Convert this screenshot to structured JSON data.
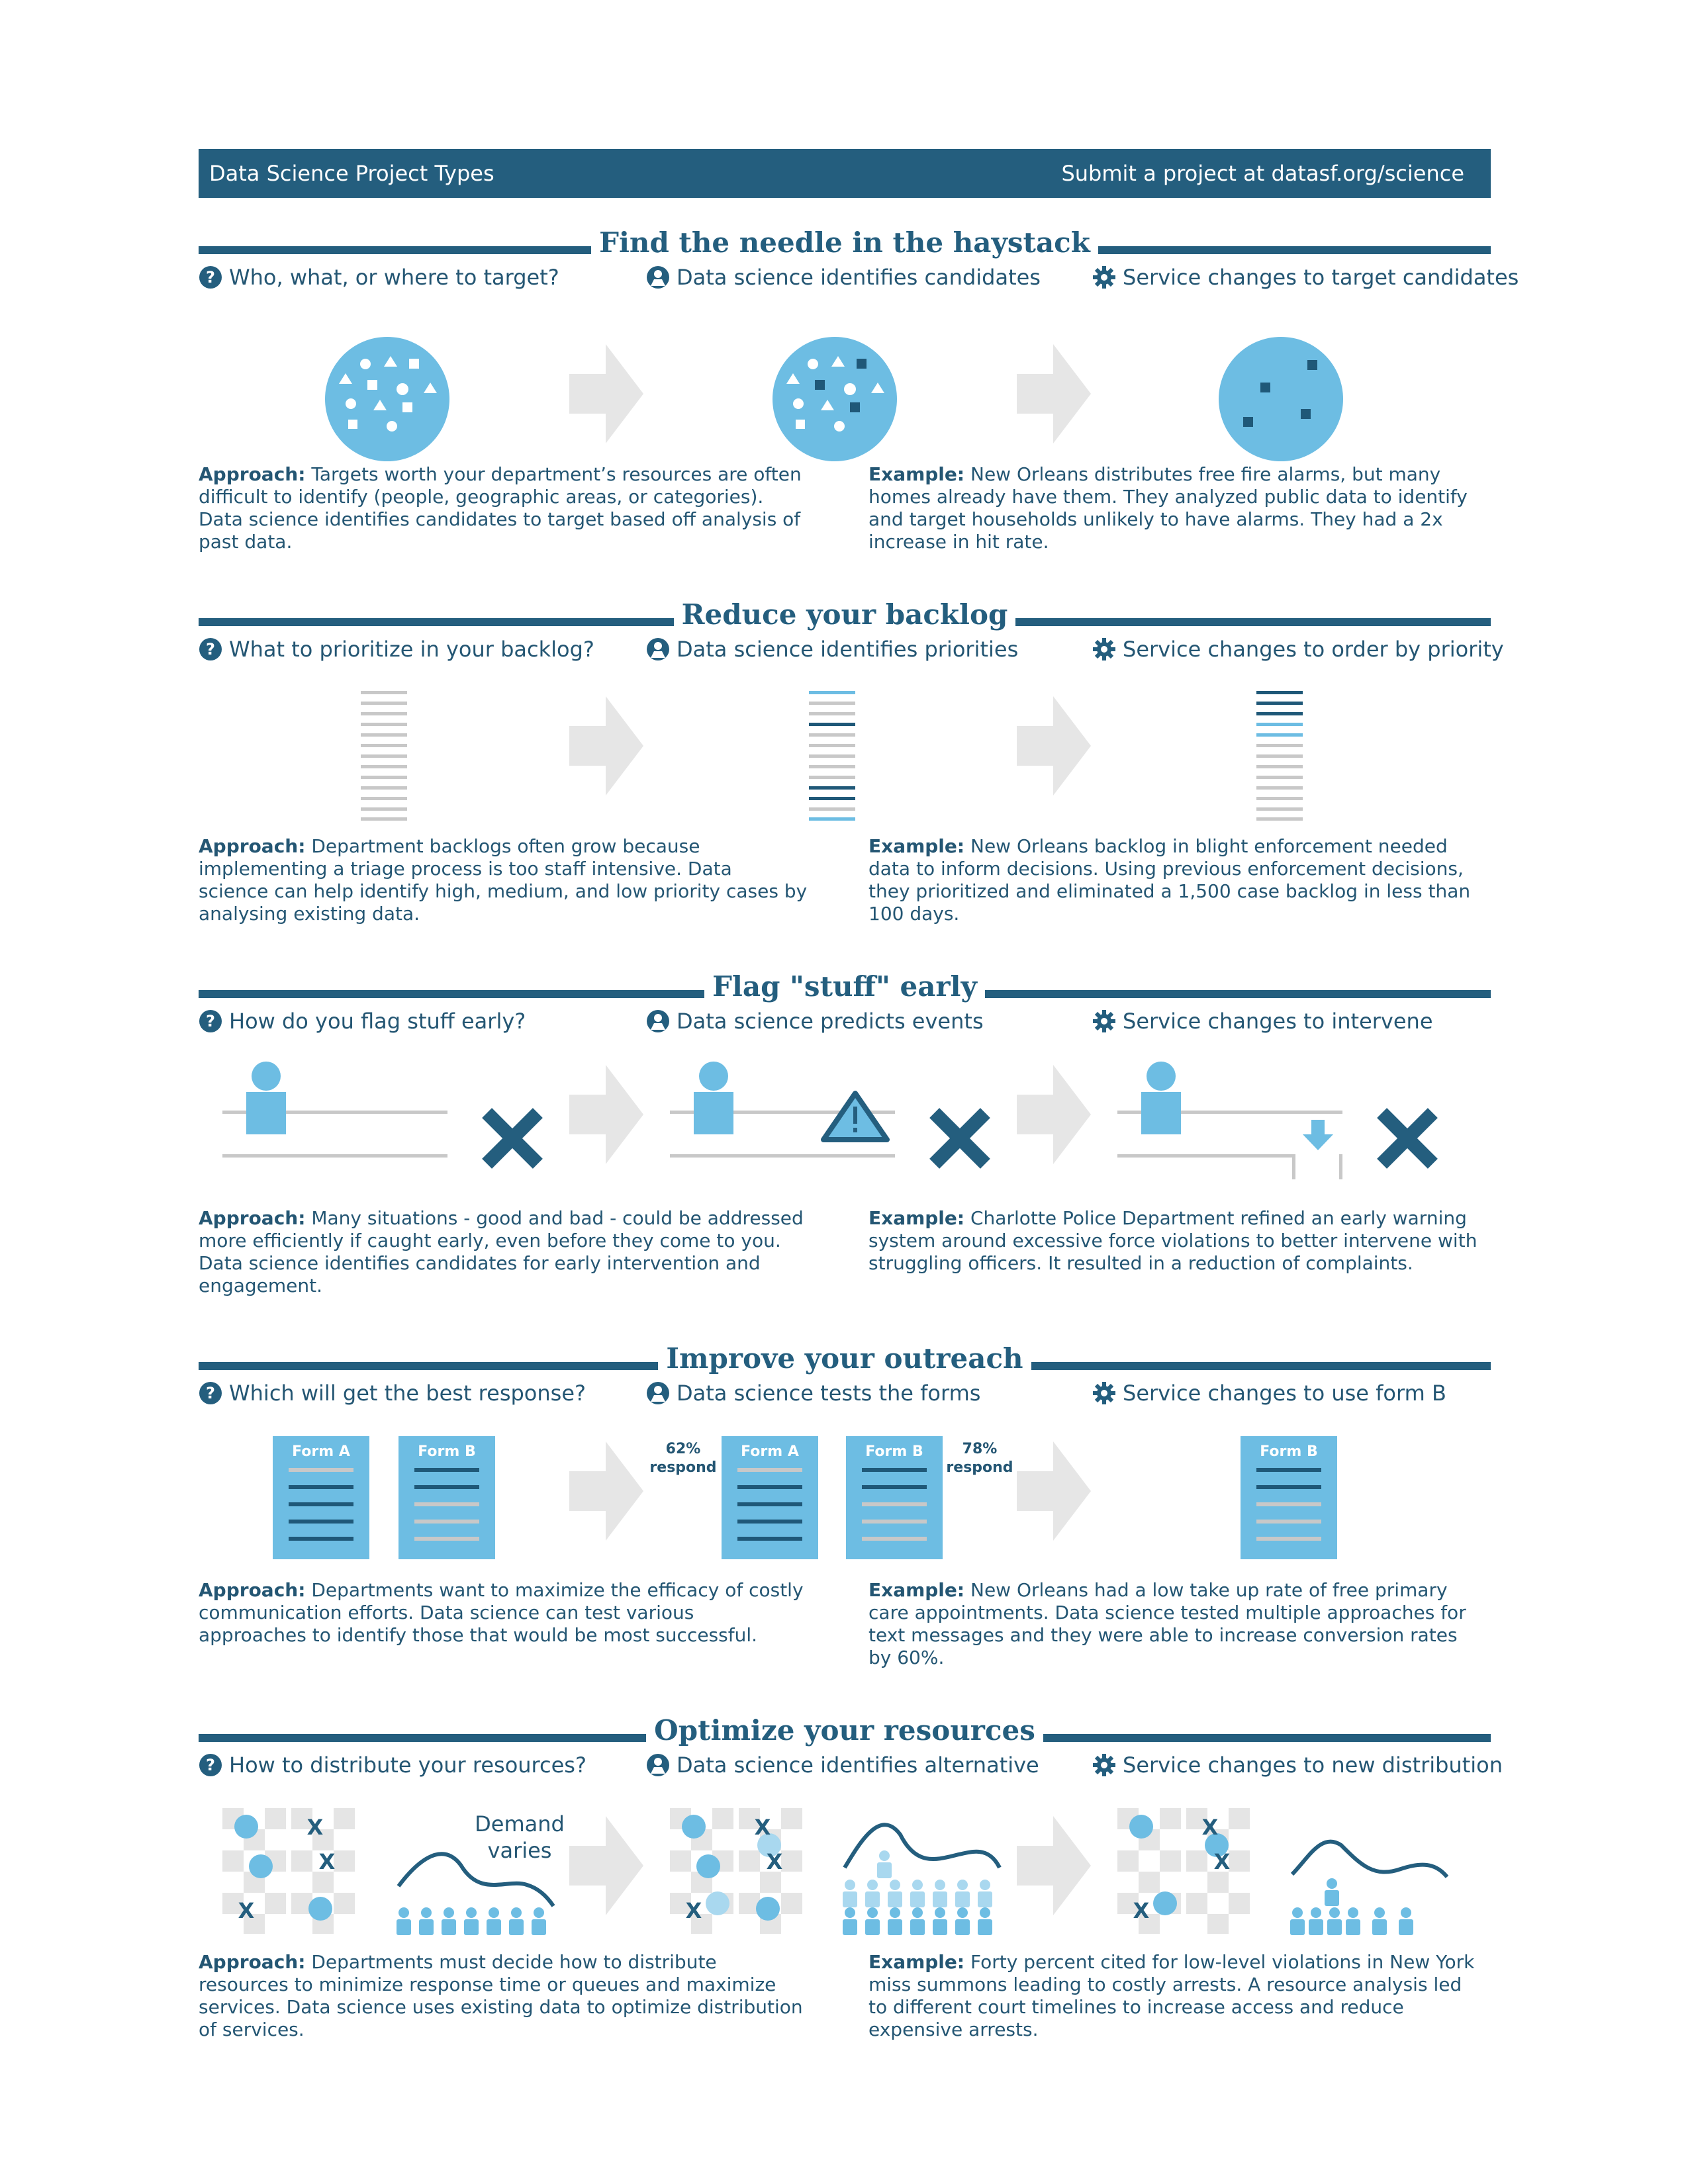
{
  "header": {
    "title": "Data Science Project Types",
    "submit": "Submit a project at datasf.org/science"
  },
  "sections": [
    {
      "title": "Find the needle in the haystack",
      "steps": [
        "Who, what, or where to target?",
        "Data science identifies candidates",
        "Service changes to target candidates"
      ],
      "approach_label": "Approach:",
      "approach": "Targets worth your department’s resources are often difficult to identify (people, geographic areas, or categories). Data science identifies candidates to target based off analysis of past data.",
      "example_label": "Example:",
      "example": "New Orleans distributes free fire alarms, but many homes already have them. They analyzed public data to identify and target households unlikely to have alarms. They had a 2x increase in hit rate."
    },
    {
      "title": "Reduce your backlog",
      "steps": [
        "What to prioritize in your backlog?",
        "Data science identifies priorities",
        "Service changes to order by priority"
      ],
      "approach_label": "Approach:",
      "approach": "Department backlogs often grow because implementing a triage process is too staff intensive. Data science can help identify high, medium, and low priority cases by analysing existing data.",
      "example_label": "Example:",
      "example": "New Orleans backlog in blight enforcement needed data to inform decisions. Using previous enforcement decisions, they prioritized and eliminated a 1,500 case backlog in less than 100 days."
    },
    {
      "title": "Flag \"stuff\" early",
      "steps": [
        "How do you flag stuff early?",
        "Data science predicts events",
        "Service changes to intervene"
      ],
      "approach_label": "Approach:",
      "approach": "Many situations - good and bad - could be addressed more efficiently if caught early, even before they come to you. Data  science identifies candidates for early intervention and engagement.",
      "example_label": "Example:",
      "example": "Charlotte Police Department refined an early warning system around excessive force violations to better intervene with struggling officers. It resulted in a reduction of complaints."
    },
    {
      "title": "Improve your outreach",
      "steps": [
        "Which will get the best response?",
        "Data science tests the forms",
        "Service changes to use form B"
      ],
      "approach_label": "Approach:",
      "approach": "Departments want to maximize the efficacy of costly communication efforts. Data science can test various approaches to identify those that would be most successful.",
      "example_label": "Example:",
      "example": "New Orleans had a low take up rate of free primary care appointments. Data science tested multiple approaches for text messages and they were able to increase conversion rates by 60%.",
      "form_a": "Form A",
      "form_b": "Form B",
      "respond_a_pct": "62%",
      "respond_b_pct": "78%",
      "respond_word": "respond"
    },
    {
      "title": "Optimize your resources",
      "steps": [
        "How to distribute your resources?",
        "Data science identifies alternative",
        "Service changes to new distribution"
      ],
      "approach_label": "Approach:",
      "approach": "Departments must decide how to distribute resources to minimize response time or queues and maximize services. Data science uses existing data to optimize distribution of services.",
      "example_label": "Example:",
      "example": "Forty percent cited for low-level violations in New York miss summons leading to costly arrests. A resource analysis led to different court timelines to increase access and reduce expensive arrests.",
      "demand_line1": "Demand",
      "demand_line2": "varies",
      "x_mark": "X"
    }
  ],
  "colors": {
    "navy": "#245e7e",
    "light_blue": "#6dbde3",
    "pale_blue": "#a9d8ef",
    "dark_mark": "#1f5878",
    "gray": "#e5e5e5",
    "line_gray": "#c8c8c8"
  },
  "icons": [
    "question-icon",
    "scientist-icon",
    "gear-icon",
    "arrow-right-icon",
    "warning-icon",
    "x-icon",
    "down-arrow-icon",
    "person-icon"
  ]
}
